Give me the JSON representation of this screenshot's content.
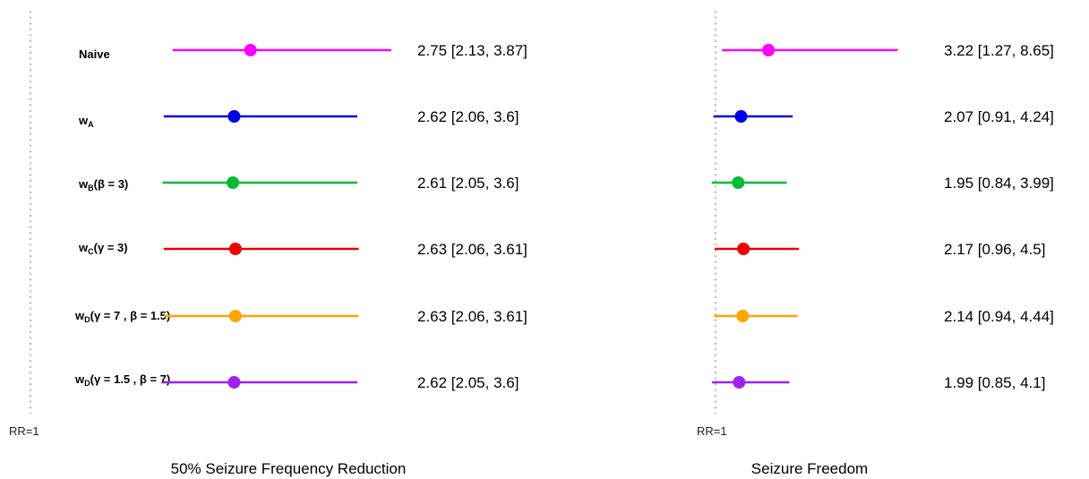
{
  "chart_data": [
    {
      "type": "forest",
      "title": "50% Seizure Frequency Reduction",
      "reference_line": {
        "value": 1,
        "label": "RR=1"
      },
      "rows": [
        {
          "label": "Naive",
          "color": "#ff00ff",
          "estimate": 2.75,
          "lower": 2.13,
          "upper": 3.87,
          "text": "2.75 [2.13, 3.87]"
        },
        {
          "label": "wA",
          "color": "#0000e6",
          "estimate": 2.62,
          "lower": 2.06,
          "upper": 3.6,
          "text": "2.62 [2.06, 3.6]"
        },
        {
          "label": "wB(β = 3)",
          "color": "#00bb33",
          "estimate": 2.61,
          "lower": 2.05,
          "upper": 3.6,
          "text": "2.61 [2.05, 3.6]"
        },
        {
          "label": "wC(γ = 3)",
          "color": "#ee0000",
          "estimate": 2.63,
          "lower": 2.06,
          "upper": 3.61,
          "text": "2.63 [2.06, 3.61]"
        },
        {
          "label": "wD(γ = 7 , β = 1.5)",
          "color": "#ffa500",
          "estimate": 2.63,
          "lower": 2.06,
          "upper": 3.61,
          "text": "2.63 [2.06, 3.61]"
        },
        {
          "label": "wD(γ = 1.5 , β = 7)",
          "color": "#a020f0",
          "estimate": 2.62,
          "lower": 2.05,
          "upper": 3.6,
          "text": "2.62 [2.05, 3.6]"
        }
      ]
    },
    {
      "type": "forest",
      "title": "Seizure Freedom",
      "reference_line": {
        "value": 1,
        "label": "RR=1"
      },
      "rows": [
        {
          "label": "Naive",
          "color": "#ff00ff",
          "estimate": 3.22,
          "lower": 1.27,
          "upper": 8.65,
          "text": "3.22 [1.27, 8.65]"
        },
        {
          "label": "wA",
          "color": "#0000e6",
          "estimate": 2.07,
          "lower": 0.91,
          "upper": 4.24,
          "text": "2.07 [0.91, 4.24]"
        },
        {
          "label": "wB(β = 3)",
          "color": "#00bb33",
          "estimate": 1.95,
          "lower": 0.84,
          "upper": 3.99,
          "text": "1.95 [0.84, 3.99]"
        },
        {
          "label": "wC(γ = 3)",
          "color": "#ee0000",
          "estimate": 2.17,
          "lower": 0.96,
          "upper": 4.5,
          "text": "2.17 [0.96, 4.5]"
        },
        {
          "label": "wD(γ = 7 , β = 1.5)",
          "color": "#ffa500",
          "estimate": 2.14,
          "lower": 0.94,
          "upper": 4.44,
          "text": "2.14 [0.94, 4.44]"
        },
        {
          "label": "wD(γ = 1.5 , β = 7)",
          "color": "#a020f0",
          "estimate": 1.99,
          "lower": 0.85,
          "upper": 4.1,
          "text": "1.99 [0.85, 4.1]"
        }
      ]
    }
  ]
}
